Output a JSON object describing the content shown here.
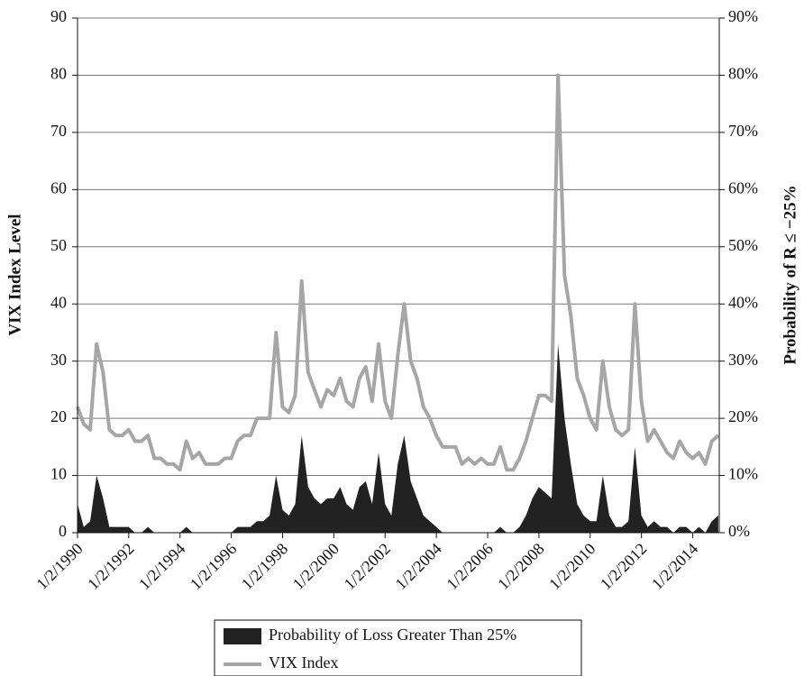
{
  "chart_data": {
    "type": "line",
    "y_label": "VIX Index Level",
    "y2_label": "Probability of R ≤ −25%",
    "x": [
      "1990-01-02",
      "1990-04-01",
      "1990-07-01",
      "1990-10-01",
      "1991-01-01",
      "1991-04-01",
      "1991-07-01",
      "1991-10-01",
      "1992-01-01",
      "1992-04-01",
      "1992-07-01",
      "1992-10-01",
      "1993-01-01",
      "1993-04-01",
      "1993-07-01",
      "1993-10-01",
      "1994-01-01",
      "1994-04-01",
      "1994-07-01",
      "1994-10-01",
      "1995-01-01",
      "1995-04-01",
      "1995-07-01",
      "1995-10-01",
      "1996-01-01",
      "1996-04-01",
      "1996-07-01",
      "1996-10-01",
      "1997-01-01",
      "1997-04-01",
      "1997-07-01",
      "1997-10-01",
      "1998-01-01",
      "1998-04-01",
      "1998-07-01",
      "1998-10-01",
      "1999-01-01",
      "1999-04-01",
      "1999-07-01",
      "1999-10-01",
      "2000-01-01",
      "2000-04-01",
      "2000-07-01",
      "2000-10-01",
      "2001-01-01",
      "2001-04-01",
      "2001-07-01",
      "2001-10-01",
      "2002-01-01",
      "2002-04-01",
      "2002-07-01",
      "2002-10-01",
      "2003-01-01",
      "2003-04-01",
      "2003-07-01",
      "2003-10-01",
      "2004-01-01",
      "2004-04-01",
      "2004-07-01",
      "2004-10-01",
      "2005-01-01",
      "2005-04-01",
      "2005-07-01",
      "2005-10-01",
      "2006-01-01",
      "2006-04-01",
      "2006-07-01",
      "2006-10-01",
      "2007-01-01",
      "2007-04-01",
      "2007-07-01",
      "2007-10-01",
      "2008-01-01",
      "2008-04-01",
      "2008-07-01",
      "2008-10-01",
      "2009-01-01",
      "2009-04-01",
      "2009-07-01",
      "2009-10-01",
      "2010-01-01",
      "2010-04-01",
      "2010-07-01",
      "2010-10-01",
      "2011-01-01",
      "2011-04-01",
      "2011-07-01",
      "2011-10-01",
      "2012-01-01",
      "2012-04-01",
      "2012-07-01",
      "2012-10-01",
      "2013-01-01",
      "2013-04-01",
      "2013-07-01",
      "2013-10-01",
      "2014-01-01",
      "2014-04-01",
      "2014-07-01",
      "2014-10-01",
      "2015-01-01"
    ],
    "series": [
      {
        "name": "Probability of Loss Greater Than 25%",
        "type": "area",
        "axis": "y2",
        "color": "#222222",
        "values": [
          5,
          1,
          2,
          10,
          6,
          1,
          1,
          1,
          1,
          0,
          0,
          1,
          0,
          0,
          0,
          0,
          0,
          1,
          0,
          0,
          0,
          0,
          0,
          0,
          0,
          1,
          1,
          1,
          2,
          2,
          3,
          10,
          4,
          3,
          5,
          17,
          8,
          6,
          5,
          6,
          6,
          8,
          5,
          4,
          8,
          9,
          5,
          14,
          5,
          3,
          12,
          17,
          9,
          6,
          3,
          2,
          1,
          0,
          0,
          0,
          0,
          0,
          0,
          0,
          0,
          0,
          1,
          0,
          0,
          1,
          3,
          6,
          8,
          7,
          6,
          33,
          20,
          12,
          5,
          3,
          2,
          2,
          10,
          3,
          1,
          1,
          2,
          15,
          3,
          1,
          2,
          1,
          1,
          0,
          1,
          1,
          0,
          1,
          0,
          2,
          3
        ]
      },
      {
        "name": "VIX Index",
        "type": "line",
        "color": "#a6a6a6",
        "values": [
          22,
          19,
          18,
          33,
          28,
          18,
          17,
          17,
          18,
          16,
          16,
          17,
          13,
          13,
          12,
          12,
          11,
          16,
          13,
          14,
          12,
          12,
          12,
          13,
          13,
          16,
          17,
          17,
          20,
          20,
          20,
          35,
          22,
          21,
          24,
          44,
          28,
          25,
          22,
          25,
          24,
          27,
          23,
          22,
          27,
          29,
          23,
          33,
          23,
          20,
          31,
          40,
          30,
          27,
          22,
          20,
          17,
          15,
          15,
          15,
          12,
          13,
          12,
          13,
          12,
          12,
          15,
          11,
          11,
          13,
          16,
          20,
          24,
          24,
          23,
          80,
          45,
          38,
          27,
          24,
          20,
          18,
          30,
          22,
          18,
          17,
          18,
          40,
          23,
          16,
          18,
          16,
          14,
          13,
          16,
          14,
          13,
          14,
          12,
          16,
          17
        ]
      }
    ],
    "xlim": [
      "1990-01-02",
      "2015-01-15"
    ],
    "xticks": [
      {
        "value": "1990-01-02",
        "label": "1/2/1990"
      },
      {
        "value": "1992-01-02",
        "label": "1/2/1992"
      },
      {
        "value": "1994-01-02",
        "label": "1/2/1994"
      },
      {
        "value": "1996-01-02",
        "label": "1/2/1996"
      },
      {
        "value": "1998-01-02",
        "label": "1/2/1998"
      },
      {
        "value": "2000-01-02",
        "label": "1/2/2000"
      },
      {
        "value": "2002-01-02",
        "label": "1/2/2002"
      },
      {
        "value": "2004-01-02",
        "label": "1/2/2004"
      },
      {
        "value": "2006-01-02",
        "label": "1/2/2006"
      },
      {
        "value": "2008-01-02",
        "label": "1/2/2008"
      },
      {
        "value": "2010-01-02",
        "label": "1/2/2010"
      },
      {
        "value": "2012-01-02",
        "label": "1/2/2012"
      },
      {
        "value": "2014-01-02",
        "label": "1/2/2014"
      }
    ],
    "ylim": [
      0,
      90
    ],
    "yticks": [
      0,
      10,
      20,
      30,
      40,
      50,
      60,
      70,
      80,
      90
    ],
    "y2lim": [
      0,
      90
    ],
    "y2ticks": [
      {
        "value": 0,
        "label": "0%"
      },
      {
        "value": 10,
        "label": "10%"
      },
      {
        "value": 20,
        "label": "20%"
      },
      {
        "value": 30,
        "label": "30%"
      },
      {
        "value": 40,
        "label": "40%"
      },
      {
        "value": 50,
        "label": "50%"
      },
      {
        "value": 60,
        "label": "60%"
      },
      {
        "value": 70,
        "label": "70%"
      },
      {
        "value": 80,
        "label": "80%"
      },
      {
        "value": 90,
        "label": "90%"
      }
    ],
    "grid": true,
    "legend": "bottom"
  }
}
